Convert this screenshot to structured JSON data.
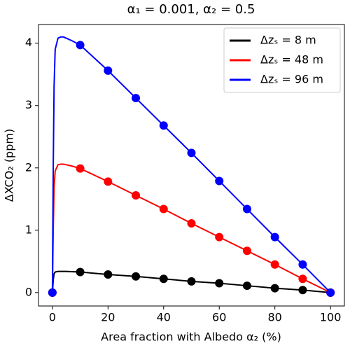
{
  "chart_data": {
    "type": "line",
    "title": "α₁ = 0.001, α₂ = 0.5",
    "xlabel": "Area fraction with Albedo α₂  (%)",
    "ylabel": "ΔXCO₂ (ppm)",
    "x": [
      0,
      10,
      20,
      30,
      40,
      50,
      60,
      70,
      80,
      90,
      100
    ],
    "curve_x": [
      0,
      0.3,
      0.6,
      1,
      2,
      3,
      4,
      5,
      7,
      10,
      20,
      30,
      40,
      50,
      60,
      70,
      80,
      90,
      100
    ],
    "series": [
      {
        "name": "Δzₛ = 8 m",
        "color": "#000000",
        "values": [
          0,
          0.33,
          0.29,
          0.26,
          0.22,
          0.18,
          0.15,
          0.11,
          0.07,
          0.04,
          0
        ],
        "curve_values": [
          0,
          0.2,
          0.3,
          0.33,
          0.34,
          0.34,
          0.34,
          0.34,
          0.335,
          0.33,
          0.29,
          0.26,
          0.22,
          0.18,
          0.15,
          0.11,
          0.07,
          0.04,
          0
        ]
      },
      {
        "name": "Δzₛ = 48 m",
        "color": "#ff0000",
        "values": [
          0,
          1.99,
          1.78,
          1.56,
          1.34,
          1.11,
          0.89,
          0.67,
          0.45,
          0.22,
          0
        ],
        "curve_values": [
          0,
          1.0,
          1.7,
          1.95,
          2.05,
          2.06,
          2.06,
          2.05,
          2.03,
          1.99,
          1.78,
          1.56,
          1.34,
          1.11,
          0.89,
          0.67,
          0.45,
          0.22,
          0
        ]
      },
      {
        "name": "Δzₛ = 96 m",
        "color": "#0000ff",
        "values": [
          0,
          3.97,
          3.56,
          3.12,
          2.68,
          2.24,
          1.79,
          1.34,
          0.89,
          0.45,
          0
        ],
        "curve_values": [
          0,
          2.0,
          3.3,
          3.9,
          4.08,
          4.1,
          4.1,
          4.08,
          4.04,
          3.97,
          3.56,
          3.12,
          2.68,
          2.24,
          1.79,
          1.34,
          0.89,
          0.45,
          0
        ]
      }
    ],
    "xlim": [
      -5,
      105
    ],
    "ylim": [
      -0.215,
      4.3
    ],
    "xticks": [
      0,
      20,
      40,
      60,
      80,
      100
    ],
    "yticks": [
      0,
      1,
      2,
      3,
      4
    ],
    "legend": "upper right"
  }
}
